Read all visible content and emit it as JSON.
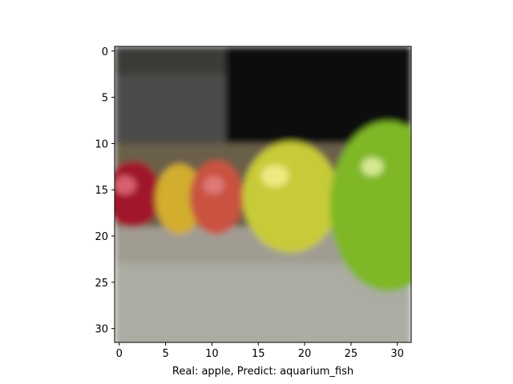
{
  "chart_data": {
    "type": "image",
    "xlabel": "Real: apple, Predict: aquarium_fish",
    "xlim": [
      -0.5,
      31.5
    ],
    "ylim": [
      31.5,
      -0.5
    ],
    "xticks": [
      0,
      5,
      10,
      15,
      20,
      25,
      30
    ],
    "yticks": [
      0,
      5,
      10,
      15,
      20,
      25,
      30
    ]
  }
}
